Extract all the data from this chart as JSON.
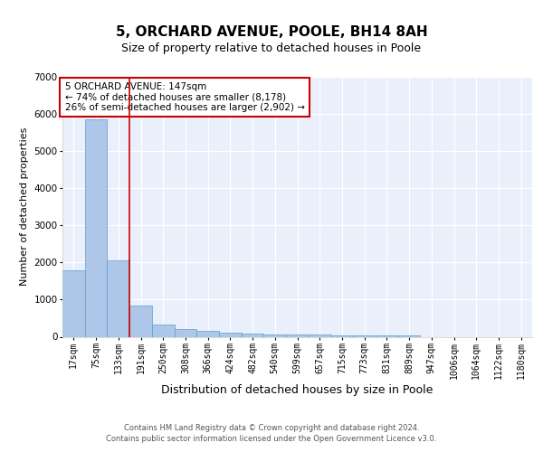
{
  "title": "5, ORCHARD AVENUE, POOLE, BH14 8AH",
  "subtitle": "Size of property relative to detached houses in Poole",
  "xlabel": "Distribution of detached houses by size in Poole",
  "ylabel": "Number of detached properties",
  "categories": [
    "17sqm",
    "75sqm",
    "133sqm",
    "191sqm",
    "250sqm",
    "308sqm",
    "366sqm",
    "424sqm",
    "482sqm",
    "540sqm",
    "599sqm",
    "657sqm",
    "715sqm",
    "773sqm",
    "831sqm",
    "889sqm",
    "947sqm",
    "1006sqm",
    "1064sqm",
    "1122sqm",
    "1180sqm"
  ],
  "values": [
    1780,
    5850,
    2050,
    840,
    340,
    195,
    160,
    100,
    90,
    60,
    55,
    50,
    45,
    40,
    35,
    30,
    0,
    0,
    0,
    0,
    0
  ],
  "bar_color": "#aec6e8",
  "bar_edge_color": "#5a9fd4",
  "vline_pos": 2.5,
  "vline_color": "#cc0000",
  "annotation_text": "5 ORCHARD AVENUE: 147sqm\n← 74% of detached houses are smaller (8,178)\n26% of semi-detached houses are larger (2,902) →",
  "annotation_box_color": "#ffffff",
  "annotation_box_edge_color": "#cc0000",
  "ylim": [
    0,
    7000
  ],
  "yticks": [
    0,
    1000,
    2000,
    3000,
    4000,
    5000,
    6000,
    7000
  ],
  "bg_color": "#eaf0fb",
  "grid_color": "#ffffff",
  "footer_line1": "Contains HM Land Registry data © Crown copyright and database right 2024.",
  "footer_line2": "Contains public sector information licensed under the Open Government Licence v3.0.",
  "title_fontsize": 11,
  "subtitle_fontsize": 9,
  "xlabel_fontsize": 9,
  "ylabel_fontsize": 8,
  "tick_fontsize": 7,
  "annotation_fontsize": 7.5,
  "footer_fontsize": 6
}
